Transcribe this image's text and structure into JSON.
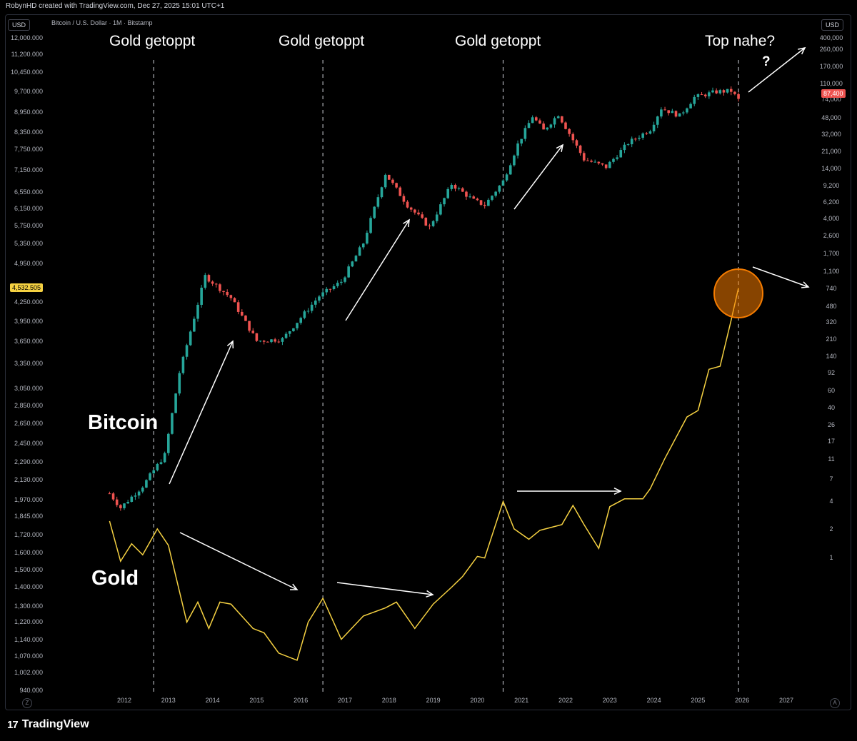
{
  "header": {
    "text": "RobynHD created with TradingView.com, Dec 27, 2025 15:01 UTC+1"
  },
  "chart": {
    "currency_left": "USD",
    "currency_right": "USD",
    "symbol": "Bitcoin / U.S. Dollar · 1M · Bitstamp",
    "left_ticks": [
      "12,000.000",
      "11,200.000",
      "10,450.000",
      "9,700.000",
      "8,950.000",
      "8,350.000",
      "7,750.000",
      "7,150.000",
      "6,550.000",
      "6,150.000",
      "5,750.000",
      "5,350.000",
      "4,950.000",
      "4,250.000",
      "3,950.000",
      "3,650.000",
      "3,350.000",
      "3,050.000",
      "2,850.000",
      "2,650.000",
      "2,450.000",
      "2,290.000",
      "2,130.000",
      "1,970.000",
      "1,845.000",
      "1,720.000",
      "1,600.000",
      "1,500.000",
      "1,400.000",
      "1,300.000",
      "1,220.000",
      "1,140.000",
      "1,070.000",
      "1,002.000",
      "940.000"
    ],
    "right_ticks": [
      "400,000",
      "260,000",
      "170,000",
      "110,000",
      "74,000",
      "48,000",
      "32,000",
      "21,000",
      "14,000",
      "9,200",
      "6,200",
      "4,000",
      "2,600",
      "1,700",
      "1,100",
      "740",
      "480",
      "320",
      "210",
      "140",
      "92",
      "60",
      "40",
      "26",
      "17",
      "11",
      "7",
      "4",
      "2",
      "1"
    ],
    "years": [
      "2012",
      "2013",
      "2014",
      "2015",
      "2016",
      "2017",
      "2018",
      "2019",
      "2020",
      "2021",
      "2022",
      "2023",
      "2024",
      "2025",
      "2026",
      "2027"
    ],
    "gold_price_label": "4,532.505",
    "btc_price_label": "87,400",
    "annotations": {
      "top1": "Gold getoppt",
      "top2": "Gold getoppt",
      "top3": "Gold getoppt",
      "top4": "Top nahe?",
      "question": "?",
      "bitcoin": "Bitcoin",
      "gold": "Gold"
    },
    "colors": {
      "gold_line": "#f5d142",
      "up": "#26a69a",
      "down": "#ef5350",
      "circle": "#f57c00"
    },
    "corner_left": "Z",
    "corner_right": "A"
  },
  "footer": {
    "logo": "17",
    "brand": "TradingView"
  },
  "chart_data": {
    "type": "line",
    "title": "Bitcoin / U.S. Dollar · 1M · Bitstamp",
    "x_range": [
      "2012",
      "2027"
    ],
    "series": [
      {
        "name": "Gold",
        "axis": "left",
        "x": [
          "2011-09",
          "2011-12",
          "2012-03",
          "2012-06",
          "2012-10",
          "2013-01",
          "2013-06",
          "2013-09",
          "2013-12",
          "2014-03",
          "2014-06",
          "2014-12",
          "2015-03",
          "2015-07",
          "2015-12",
          "2016-03",
          "2016-07",
          "2016-12",
          "2017-06",
          "2017-12",
          "2018-03",
          "2018-08",
          "2019-01",
          "2019-06",
          "2019-09",
          "2020-01",
          "2020-03",
          "2020-08",
          "2020-11",
          "2021-03",
          "2021-06",
          "2021-12",
          "2022-03",
          "2022-06",
          "2022-10",
          "2023-01",
          "2023-05",
          "2023-10",
          "2023-12",
          "2024-04",
          "2024-10",
          "2025-01",
          "2025-04",
          "2025-07",
          "2025-10",
          "2025-12"
        ],
        "y": [
          1825,
          1560,
          1670,
          1600,
          1770,
          1660,
          1230,
          1330,
          1200,
          1330,
          1320,
          1200,
          1180,
          1090,
          1060,
          1230,
          1350,
          1150,
          1260,
          1300,
          1330,
          1200,
          1320,
          1410,
          1470,
          1590,
          1580,
          1970,
          1770,
          1700,
          1760,
          1800,
          1940,
          1800,
          1640,
          1930,
          1990,
          1990,
          2070,
          2330,
          2740,
          2810,
          3300,
          3340,
          4000,
          4530
        ],
        "ylim": [
          940,
          12000
        ]
      },
      {
        "name": "Bitcoin",
        "axis": "right",
        "x": [
          "2011-09",
          "2011-12",
          "2012-06",
          "2012-12",
          "2013-04",
          "2013-11",
          "2014-06",
          "2015-01",
          "2015-08",
          "2016-06",
          "2016-12",
          "2017-06",
          "2017-12",
          "2018-06",
          "2018-12",
          "2019-06",
          "2019-12",
          "2020-03",
          "2020-08",
          "2020-12",
          "2021-04",
          "2021-07",
          "2021-11",
          "2022-06",
          "2022-12",
          "2023-06",
          "2023-12",
          "2024-03",
          "2024-08",
          "2024-12",
          "2025-06",
          "2025-10",
          "2025-12"
        ],
        "y": [
          5,
          3.5,
          6,
          13,
          100,
          1100,
          640,
          220,
          230,
          670,
          960,
          2500,
          14000,
          6400,
          3700,
          10800,
          7200,
          6400,
          11600,
          29000,
          58000,
          41000,
          61000,
          20000,
          16500,
          30000,
          42000,
          71000,
          59000,
          93000,
          107000,
          109000,
          87400
        ],
        "ylim": [
          1,
          400000
        ]
      }
    ],
    "annotations": [
      "Gold getoppt",
      "Gold getoppt",
      "Gold getoppt",
      "Top nahe?",
      "?",
      "Bitcoin",
      "Gold"
    ]
  }
}
